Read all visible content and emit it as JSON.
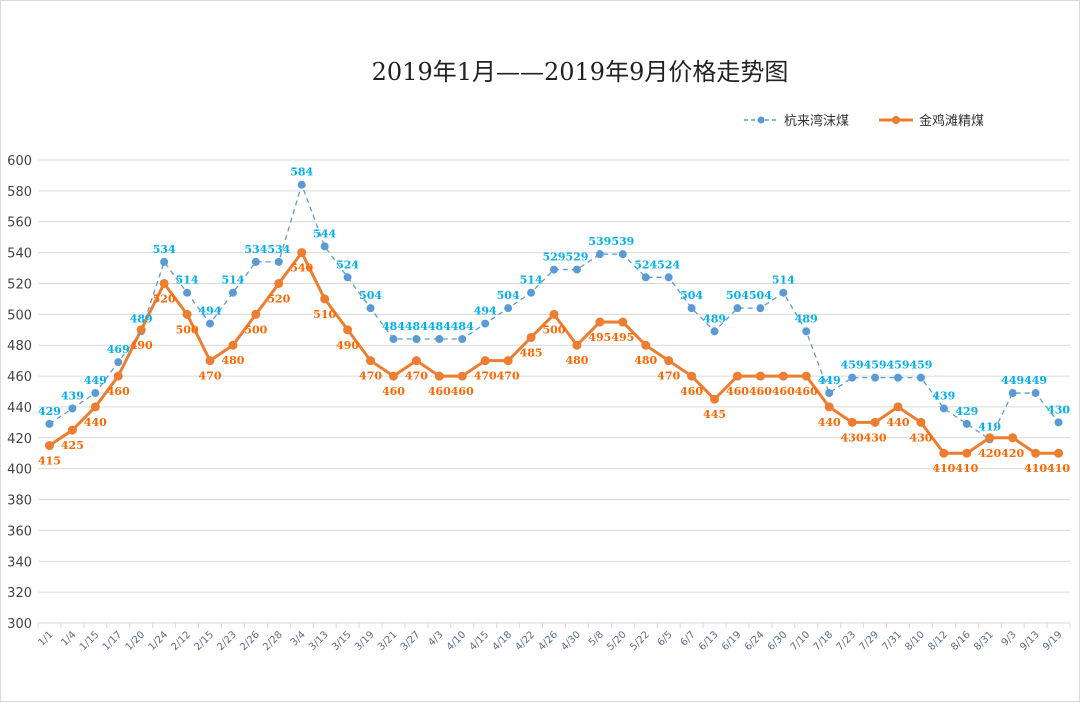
{
  "chart_data": {
    "type": "line",
    "title": "2019年1月——2019年9月价格走势图",
    "xlabel": "",
    "ylabel": "",
    "ylim": [
      300,
      600
    ],
    "yticks": [
      300,
      320,
      340,
      360,
      380,
      400,
      420,
      440,
      460,
      480,
      500,
      520,
      540,
      560,
      580,
      600
    ],
    "grid": true,
    "legend_position": "top-right",
    "categories": [
      "1/1",
      "1/4",
      "1/15",
      "1/17",
      "1/20",
      "1/24",
      "2/12",
      "2/15",
      "2/23",
      "2/26",
      "2/28",
      "3/4",
      "3/13",
      "3/15",
      "3/19",
      "3/21",
      "3/27",
      "4/3",
      "4/10",
      "4/15",
      "4/18",
      "4/22",
      "4/26",
      "4/30",
      "5/8",
      "5/20",
      "5/22",
      "6/5",
      "6/7",
      "6/13",
      "6/19",
      "6/24",
      "6/30",
      "7/10",
      "7/18",
      "7/23",
      "7/29",
      "7/31",
      "8/10",
      "8/12",
      "8/16",
      "8/31",
      "9/3",
      "9/13",
      "9/19"
    ],
    "series": [
      {
        "name": "杭来湾沫煤",
        "color": "#5B9BD5",
        "label_color": "#00B0F0",
        "style": "dashed",
        "values": [
          429,
          439,
          449,
          469,
          489,
          534,
          514,
          494,
          514,
          534,
          534,
          584,
          544,
          524,
          504,
          484,
          484,
          484,
          484,
          494,
          504,
          514,
          529,
          529,
          539,
          539,
          524,
          524,
          504,
          489,
          504,
          504,
          514,
          489,
          449,
          459,
          459,
          459,
          459,
          439,
          429,
          419,
          449,
          449,
          430
        ]
      },
      {
        "name": "金鸡滩精煤",
        "color": "#ED7D31",
        "label_color": "#FF6600",
        "style": "solid",
        "values": [
          415,
          425,
          440,
          460,
          490,
          520,
          500,
          470,
          480,
          500,
          520,
          540,
          510,
          490,
          470,
          460,
          470,
          460,
          460,
          470,
          470,
          485,
          500,
          480,
          495,
          495,
          480,
          470,
          460,
          445,
          460,
          460,
          460,
          460,
          440,
          430,
          430,
          440,
          430,
          410,
          410,
          420,
          420,
          410,
          410
        ]
      }
    ]
  }
}
